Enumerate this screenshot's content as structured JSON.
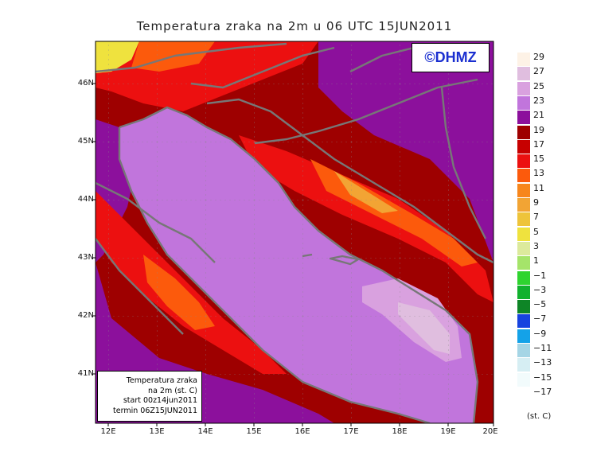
{
  "title": "Temperatura zraka na 2m u 06 UTC 15JUN2011",
  "copyright": "©DHMZ",
  "info_box": [
    "Temperatura zraka",
    "na 2m (st. C)",
    "start 00z14jun2011",
    "termin 06Z15JUN2011"
  ],
  "lat_ticks": [
    "46N",
    "45N",
    "44N",
    "43N",
    "42N",
    "41N"
  ],
  "lon_ticks": [
    "12E",
    "13E",
    "14E",
    "15E",
    "16E",
    "17E",
    "18E",
    "19E",
    "20E"
  ],
  "legend": {
    "units": "(st. C)",
    "labels": [
      "29",
      "27",
      "25",
      "23",
      "21",
      "19",
      "17",
      "15",
      "13",
      "11",
      "9",
      "7",
      "5",
      "3",
      "1",
      "−1",
      "−3",
      "−5",
      "−7",
      "−9",
      "−11",
      "−13",
      "−15",
      "−17"
    ],
    "colors": [
      "#fdf2e6",
      "#e0bedf",
      "#d9a1df",
      "#c175dc",
      "#8c109c",
      "#9e0000",
      "#c70000",
      "#ec1010",
      "#fc5a0c",
      "#f7861c",
      "#f2a434",
      "#eec43a",
      "#efe23e",
      "#dcea9c",
      "#a5e46a",
      "#2fd42f",
      "#12b12e",
      "#0e8526",
      "#1743df",
      "#14a2e8",
      "#a5d5e5",
      "#d6eef3",
      "#f2fbfc"
    ],
    "grey_bin_color": "#a8a8a8"
  },
  "map_colors": {
    "sea_main": "#c175dc",
    "sea_warm": "#d9a1df",
    "sea_warmest": "#e0bedf",
    "land_cool": "#8c109c",
    "land_mid": "#9e0000",
    "land_warm": "#c70000",
    "land_hot": "#ec1010",
    "land_hotter": "#fc5a0c",
    "land_hottest": "#f2a434",
    "alpine_cold": "#efe23e",
    "coastline": "#777777"
  }
}
